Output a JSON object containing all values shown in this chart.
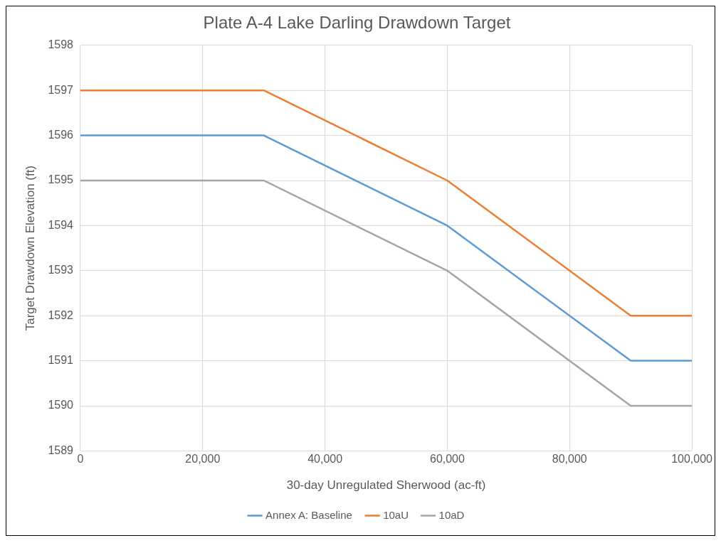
{
  "chart_data": {
    "type": "line",
    "title": "Plate A-4 Lake Darling Drawdown Target",
    "xlabel": "30-day Unregulated Sherwood (ac-ft)",
    "ylabel": "Target Drawdown Elevation (ft)",
    "x": [
      0,
      30000,
      60000,
      90000,
      100000
    ],
    "series": [
      {
        "name": "Annex A: Baseline",
        "color": "#5b9bd5",
        "values": [
          1596,
          1596,
          1594,
          1591,
          1591
        ]
      },
      {
        "name": "10aU",
        "color": "#ed7d31",
        "values": [
          1597,
          1597,
          1595,
          1592,
          1592
        ]
      },
      {
        "name": "10aD",
        "color": "#a5a5a5",
        "values": [
          1595,
          1595,
          1593,
          1590,
          1590
        ]
      }
    ],
    "xlim": [
      0,
      100000
    ],
    "xticks": [
      0,
      {
        "value": 20000,
        "label": "20,000"
      },
      {
        "value": 40000,
        "label": "40,000"
      },
      {
        "value": 60000,
        "label": "60,000"
      },
      {
        "value": 80000,
        "label": "80,000"
      },
      {
        "value": 100000,
        "label": "100,000"
      }
    ],
    "ylim": [
      1589,
      1598
    ],
    "yticks": [
      1589,
      1590,
      1591,
      1592,
      1593,
      1594,
      1595,
      1596,
      1597,
      1598
    ],
    "grid": true,
    "legend": "bottom",
    "marker": "none",
    "line_style": "solid"
  }
}
